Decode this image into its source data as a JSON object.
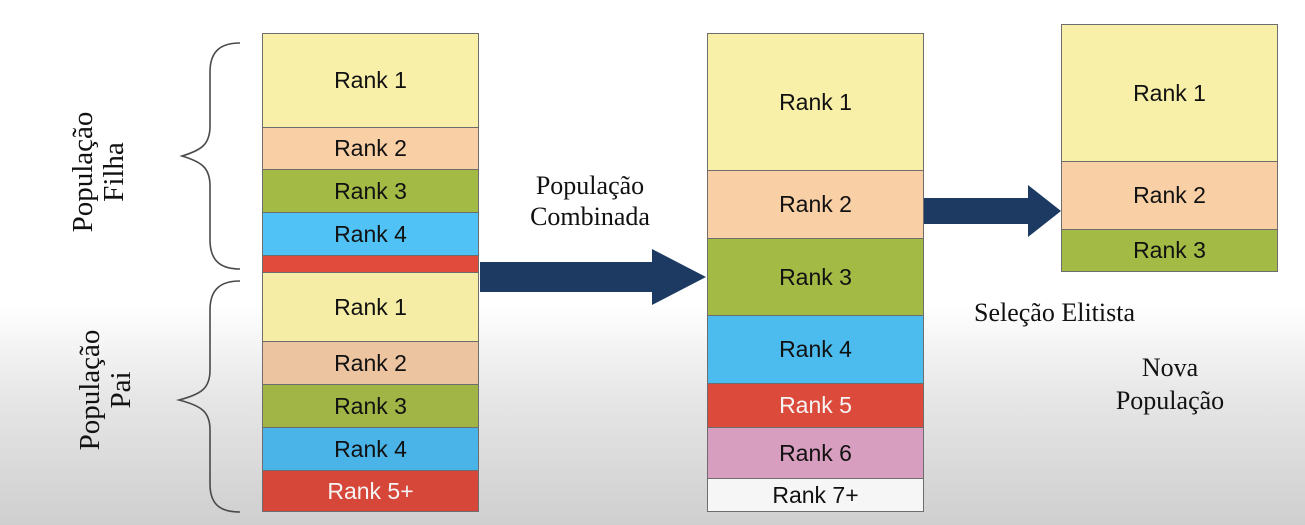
{
  "left_labels": {
    "filha": {
      "line1": "População",
      "line2": "Filha"
    },
    "pai": {
      "line1": "População",
      "line2": "Pai"
    }
  },
  "left_stack": {
    "child": [
      {
        "label": "Rank 1",
        "color": "#f8f0a8"
      },
      {
        "label": "Rank 2",
        "color": "#f9cfa6"
      },
      {
        "label": "Rank 3",
        "color": "#a3ba45"
      },
      {
        "label": "Rank 4",
        "color": "#50c2f5"
      },
      {
        "label": "",
        "color": "#e14b3c"
      }
    ],
    "parent": [
      {
        "label": "Rank 1",
        "color": "#f5eda6"
      },
      {
        "label": "Rank 2",
        "color": "#edc4a0"
      },
      {
        "label": "Rank 3",
        "color": "#a0b546"
      },
      {
        "label": "Rank 4",
        "color": "#4ab3e8"
      },
      {
        "label": "Rank 5+",
        "color": "#d6473a"
      }
    ]
  },
  "combined_label": {
    "line1": "População",
    "line2": "Combinada"
  },
  "combined_stack": [
    {
      "label": "Rank 1",
      "color": "#f8f0a8"
    },
    {
      "label": "Rank 2",
      "color": "#f9cfa6"
    },
    {
      "label": "Rank 3",
      "color": "#a3ba45"
    },
    {
      "label": "Rank 4",
      "color": "#4cbcef"
    },
    {
      "label": "Rank 5",
      "color": "#dc4a3c"
    },
    {
      "label": "Rank 6",
      "color": "#d89ec0"
    },
    {
      "label": "Rank 7+",
      "color": "#f6f6f6"
    }
  ],
  "new_stack": [
    {
      "label": "Rank 1",
      "color": "#f8f0a8"
    },
    {
      "label": "Rank 2",
      "color": "#f9cfa6"
    },
    {
      "label": "Rank 3",
      "color": "#a3ba45"
    }
  ],
  "selection_label": "Seleção Elitista",
  "new_pop_label": {
    "line1": "Nova",
    "line2": "População"
  },
  "arrow_color": "#1c3a62",
  "brace_color": "#4a4a4a"
}
